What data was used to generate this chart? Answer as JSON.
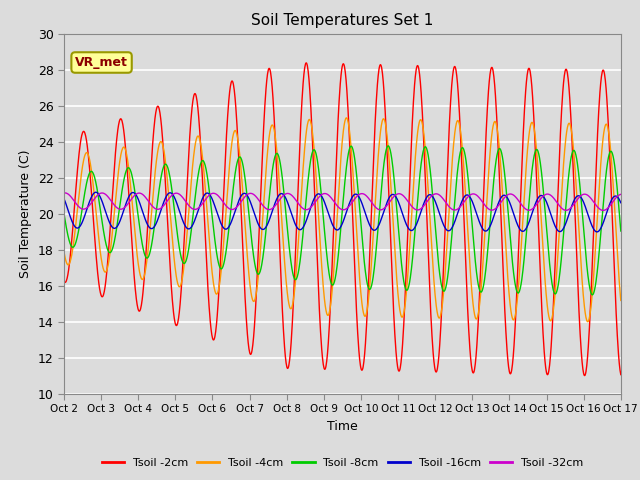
{
  "title": "Soil Temperatures Set 1",
  "xlabel": "Time",
  "ylabel": "Soil Temperature (C)",
  "ylim": [
    10,
    30
  ],
  "background_color": "#dcdcdc",
  "grid_color": "#ffffff",
  "annotation_text": "VR_met",
  "annotation_color": "#8B0000",
  "annotation_bg": "#ffff99",
  "annotation_edge": "#999900",
  "xtick_labels": [
    "Oct 2",
    "Oct 3",
    "Oct 4",
    "Oct 5",
    "Oct 6",
    "Oct 7",
    "Oct 8",
    "Oct 9",
    "Oct 10",
    "Oct 11",
    "Oct 12",
    "Oct 13",
    "Oct 14",
    "Oct 15",
    "Oct 16",
    "Oct 17"
  ],
  "series": [
    {
      "label": "Tsoil -2cm",
      "color": "#ff0000"
    },
    {
      "label": "Tsoil -4cm",
      "color": "#ff9900"
    },
    {
      "label": "Tsoil -8cm",
      "color": "#00cc00"
    },
    {
      "label": "Tsoil -16cm",
      "color": "#0000cc"
    },
    {
      "label": "Tsoil -32cm",
      "color": "#cc00cc"
    }
  ]
}
